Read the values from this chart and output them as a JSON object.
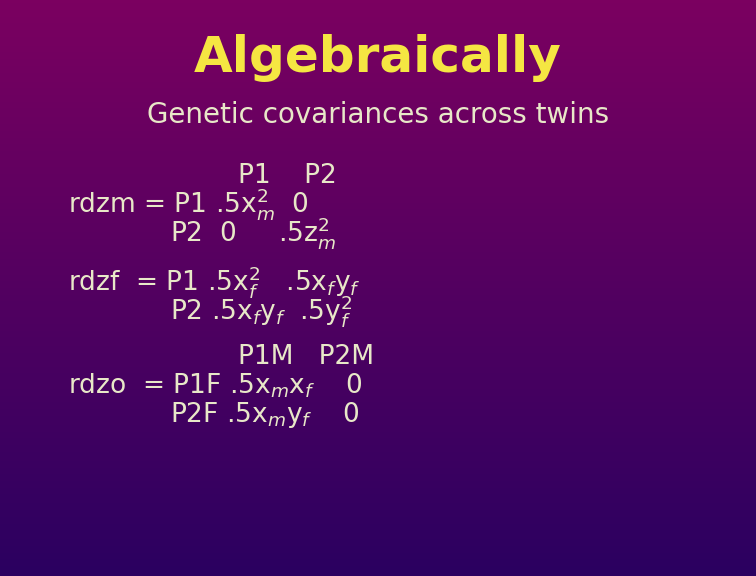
{
  "title": "Algebraically",
  "subtitle": "Genetic covariances across twins",
  "title_color": "#F5E642",
  "subtitle_color": "#E8E8C8",
  "body_color": "#E8E8C8",
  "bg_top_color": "#7B0060",
  "bg_bottom_color": "#2B0060",
  "title_fontsize": 36,
  "subtitle_fontsize": 20,
  "body_fontsize": 19
}
